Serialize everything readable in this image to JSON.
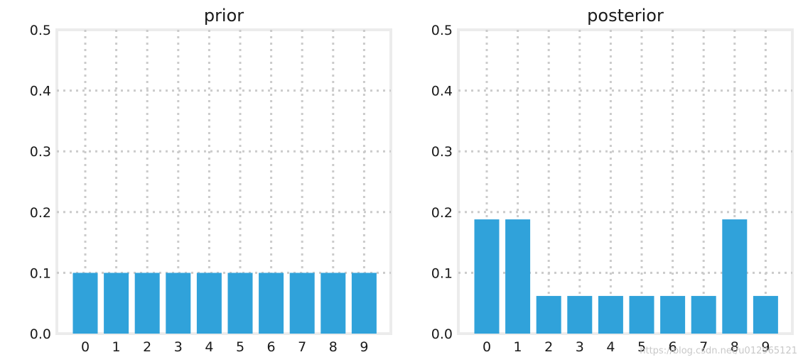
{
  "chart_data": [
    {
      "type": "bar",
      "title": "prior",
      "categories": [
        "0",
        "1",
        "2",
        "3",
        "4",
        "5",
        "6",
        "7",
        "8",
        "9"
      ],
      "values": [
        0.1,
        0.1,
        0.1,
        0.1,
        0.1,
        0.1,
        0.1,
        0.1,
        0.1,
        0.1
      ],
      "ylim": [
        0,
        0.5
      ],
      "yticks": [
        "0.0",
        "0.1",
        "0.2",
        "0.3",
        "0.4",
        "0.5"
      ],
      "grid": true,
      "bar_color": "#30a2da"
    },
    {
      "type": "bar",
      "title": "posterior",
      "categories": [
        "0",
        "1",
        "2",
        "3",
        "4",
        "5",
        "6",
        "7",
        "8",
        "9"
      ],
      "values": [
        0.188,
        0.188,
        0.062,
        0.062,
        0.062,
        0.062,
        0.062,
        0.062,
        0.188,
        0.062
      ],
      "ylim": [
        0,
        0.5
      ],
      "yticks": [
        "0.0",
        "0.1",
        "0.2",
        "0.3",
        "0.4",
        "0.5"
      ],
      "grid": true,
      "bar_color": "#30a2da"
    }
  ],
  "watermark": "https://blog.csdn.net/u012965121"
}
